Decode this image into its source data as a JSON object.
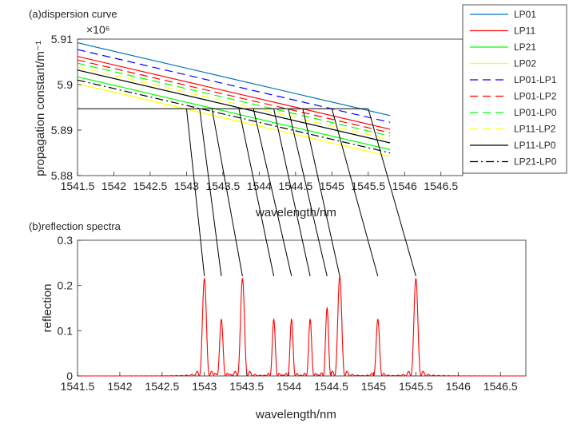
{
  "colors": {
    "LP01": "#0072BD",
    "LP11": "#FF0000",
    "LP21": "#00FF00",
    "LP02": "#FFFF00",
    "LP01-LP1": "#0000FF",
    "LP01-LP2": "#FF0000",
    "LP01-LP0": "#00FF00",
    "LP11-LP2": "#FFFF00",
    "LP11-LP0": "#000000",
    "LP21-LP0": "#000000",
    "reflection": "#FF0000",
    "connector": "#000000"
  },
  "chart_data": [
    {
      "id": "a",
      "type": "line",
      "title": "(a)dispersion curve",
      "xlabel": "wavelength/nm",
      "ylabel": "propagation constant/m⁻¹",
      "y_exponent": "×10⁶",
      "xlim": [
        1541.5,
        1546.8
      ],
      "ylim": [
        5.88,
        5.91
      ],
      "xticks": [
        "1541.5",
        "1542",
        "1542.5",
        "1543",
        "1543.5",
        "1544",
        "1544.5",
        "1545",
        "1545.5",
        "1546",
        "1546.5"
      ],
      "xtick_values": [
        1541.5,
        1542,
        1542.5,
        1543,
        1543.5,
        1544,
        1544.5,
        1545,
        1545.5,
        1546,
        1546.5
      ],
      "yticks": [
        "5.88",
        "5.89",
        "5.9",
        "5.91"
      ],
      "ytick_values": [
        5.88,
        5.89,
        5.9,
        5.91
      ],
      "grid": false,
      "legend_position": "top-right",
      "series": [
        {
          "name": "LP01",
          "style": "solid",
          "x": [
            1541.5,
            1545.8
          ],
          "y": [
            5.9092,
            5.8932
          ]
        },
        {
          "name": "LP11",
          "style": "solid",
          "x": [
            1541.5,
            1545.8
          ],
          "y": [
            5.9062,
            5.8902
          ]
        },
        {
          "name": "LP21",
          "style": "solid",
          "x": [
            1541.5,
            1545.8
          ],
          "y": [
            5.9017,
            5.8857
          ]
        },
        {
          "name": "LP02",
          "style": "solid",
          "x": [
            1541.5,
            1545.8
          ],
          "y": [
            5.9002,
            5.8842
          ]
        },
        {
          "name": "LP01-LP1",
          "style": "dashed",
          "x": [
            1541.5,
            1545.8
          ],
          "y": [
            5.9077,
            5.8917
          ]
        },
        {
          "name": "LP01-LP2",
          "style": "dashed",
          "x": [
            1541.5,
            1545.8
          ],
          "y": [
            5.9054,
            5.8894
          ]
        },
        {
          "name": "LP01-LP0",
          "style": "dashed",
          "x": [
            1541.5,
            1545.8
          ],
          "y": [
            5.9047,
            5.8887
          ]
        },
        {
          "name": "LP11-LP2",
          "style": "dashed",
          "x": [
            1541.5,
            1545.8
          ],
          "y": [
            5.9039,
            5.8879
          ]
        },
        {
          "name": "LP11-LP0",
          "style": "solid",
          "x": [
            1541.5,
            1545.8
          ],
          "y": [
            5.9032,
            5.8872
          ]
        },
        {
          "name": "LP21-LP0",
          "style": "dashdot",
          "x": [
            1541.5,
            1545.8
          ],
          "y": [
            5.901,
            5.885
          ]
        }
      ],
      "horizontal_line": {
        "y": 5.8947,
        "x_from": 1541.5,
        "x_to": 1545.5
      }
    },
    {
      "id": "b",
      "type": "line",
      "title": "(b)reflection spectra",
      "xlabel": "wavelength/nm",
      "ylabel": "reflection",
      "xlim": [
        1541.5,
        1546.8
      ],
      "ylim": [
        0,
        0.3
      ],
      "xticks": [
        "1541.5",
        "1542",
        "1542.5",
        "1543",
        "1543.5",
        "1544",
        "1544.5",
        "1545",
        "1545.5",
        "1546",
        "1546.5"
      ],
      "xtick_values": [
        1541.5,
        1542,
        1542.5,
        1543,
        1543.5,
        1544,
        1544.5,
        1545,
        1545.5,
        1546,
        1546.5
      ],
      "yticks": [
        "0",
        "0.1",
        "0.2",
        "0.3"
      ],
      "ytick_values": [
        0,
        0.1,
        0.2,
        0.3
      ],
      "grid": false,
      "peaks": [
        {
          "x": 1543.0,
          "y": 0.215,
          "w": 0.06
        },
        {
          "x": 1543.2,
          "y": 0.125,
          "w": 0.05
        },
        {
          "x": 1543.45,
          "y": 0.215,
          "w": 0.06
        },
        {
          "x": 1543.82,
          "y": 0.125,
          "w": 0.045
        },
        {
          "x": 1544.03,
          "y": 0.125,
          "w": 0.045
        },
        {
          "x": 1544.25,
          "y": 0.125,
          "w": 0.045
        },
        {
          "x": 1544.45,
          "y": 0.15,
          "w": 0.045
        },
        {
          "x": 1544.6,
          "y": 0.22,
          "w": 0.06
        },
        {
          "x": 1545.05,
          "y": 0.125,
          "w": 0.05
        },
        {
          "x": 1545.5,
          "y": 0.215,
          "w": 0.06
        }
      ]
    }
  ],
  "connectors": [
    {
      "x_top": 1543.0,
      "x_bottom": 1543.0
    },
    {
      "x_top": 1543.18,
      "x_bottom": 1543.2
    },
    {
      "x_top": 1543.35,
      "x_bottom": 1543.45
    },
    {
      "x_top": 1543.72,
      "x_bottom": 1543.82
    },
    {
      "x_top": 1543.92,
      "x_bottom": 1544.03
    },
    {
      "x_top": 1544.2,
      "x_bottom": 1544.25
    },
    {
      "x_top": 1544.4,
      "x_bottom": 1544.45
    },
    {
      "x_top": 1544.6,
      "x_bottom": 1544.6
    },
    {
      "x_top": 1545.0,
      "x_bottom": 1545.05
    },
    {
      "x_top": 1545.5,
      "x_bottom": 1545.5
    }
  ]
}
